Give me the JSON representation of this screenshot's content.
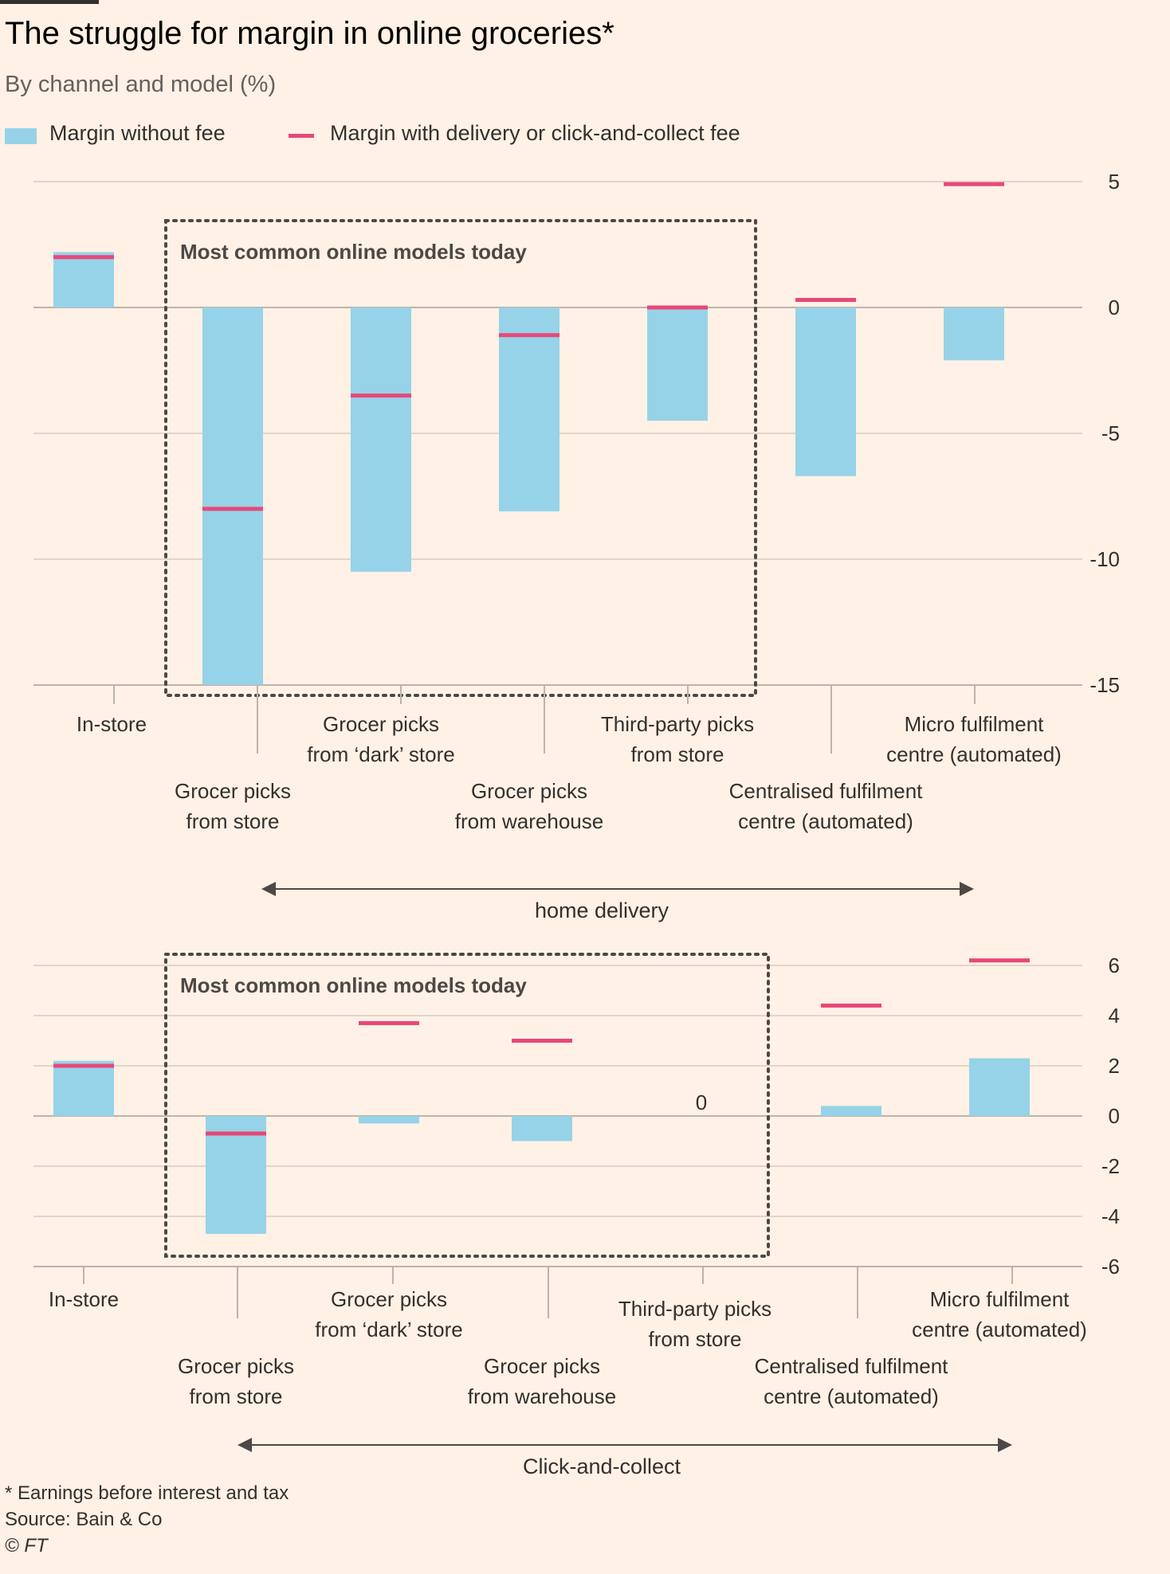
{
  "header": {
    "title": "The struggle for margin in online groceries*",
    "subtitle": "By channel and model (%)"
  },
  "legend": {
    "bar_label": "Margin without fee",
    "line_label": "Margin with delivery or click-and-collect fee"
  },
  "colors": {
    "bar": "#96D3E8",
    "marker": "#E8477A",
    "gridline": "#D9CCC1",
    "text": "#33302E",
    "box": "#4D4845"
  },
  "chart_data": [
    {
      "type": "bar",
      "group_label": "home delivery",
      "box_label": "Most common online models today",
      "categories": [
        "In-store",
        "Grocer picks from store",
        "Grocer picks from ‘dark’ store",
        "Grocer picks from warehouse",
        "Third-party picks from store",
        "Centralised fulfilment centre (automated)",
        "Micro fulfilment centre (automated)"
      ],
      "category_lines": [
        [
          "In-store"
        ],
        [
          "Grocer picks",
          "from store"
        ],
        [
          "Grocer picks",
          "from ‘dark’ store"
        ],
        [
          "Grocer picks",
          "from warehouse"
        ],
        [
          "Third-party picks",
          "from store"
        ],
        [
          "Centralised fulfilment",
          "centre (automated)"
        ],
        [
          "Micro fulfilment",
          "centre (automated)"
        ]
      ],
      "series": [
        {
          "name": "Margin without fee",
          "values": [
            2.2,
            -15,
            -10.5,
            -8.1,
            -4.5,
            -6.7,
            -2.1
          ]
        },
        {
          "name": "Margin with delivery or click-and-collect fee",
          "values": [
            2.0,
            -8.0,
            -3.5,
            -1.1,
            0.0,
            0.3,
            4.9
          ]
        }
      ],
      "ylim": [
        -15,
        5
      ],
      "yticks": [
        "5",
        "0",
        "-5",
        "-10",
        "-15"
      ],
      "grid": true
    },
    {
      "type": "bar",
      "group_label": "Click-and-collect",
      "box_label": "Most common online models today",
      "categories": [
        "In-store",
        "Grocer picks from store",
        "Grocer picks from ‘dark’ store",
        "Grocer picks from warehouse",
        "Third-party picks from store",
        "Centralised fulfilment centre (automated)",
        "Micro fulfilment centre (automated)"
      ],
      "category_lines": [
        [
          "In-store"
        ],
        [
          "Grocer picks",
          "from store"
        ],
        [
          "Grocer picks",
          "from ‘dark’ store"
        ],
        [
          "Grocer picks",
          "from warehouse"
        ],
        [
          "Third-party picks",
          "from store"
        ],
        [
          "Centralised fulfilment",
          "centre (automated)"
        ],
        [
          "Micro fulfilment",
          "centre (automated)"
        ]
      ],
      "series": [
        {
          "name": "Margin without fee",
          "values": [
            2.2,
            -4.7,
            -0.3,
            -1.0,
            0,
            0.4,
            2.3
          ]
        },
        {
          "name": "Margin with delivery or click-and-collect fee",
          "values": [
            2.0,
            -0.7,
            3.7,
            3.0,
            null,
            4.4,
            6.2
          ]
        }
      ],
      "data_labels": [
        {
          "category_index": 4,
          "text": "0"
        }
      ],
      "ylim": [
        -6,
        6
      ],
      "yticks": [
        "6",
        "4",
        "2",
        "0",
        "-2",
        "-4",
        "-6"
      ],
      "grid": true
    }
  ],
  "footer": {
    "note": "* Earnings before interest and tax",
    "source": "Source: Bain & Co",
    "credit": "© FT"
  }
}
